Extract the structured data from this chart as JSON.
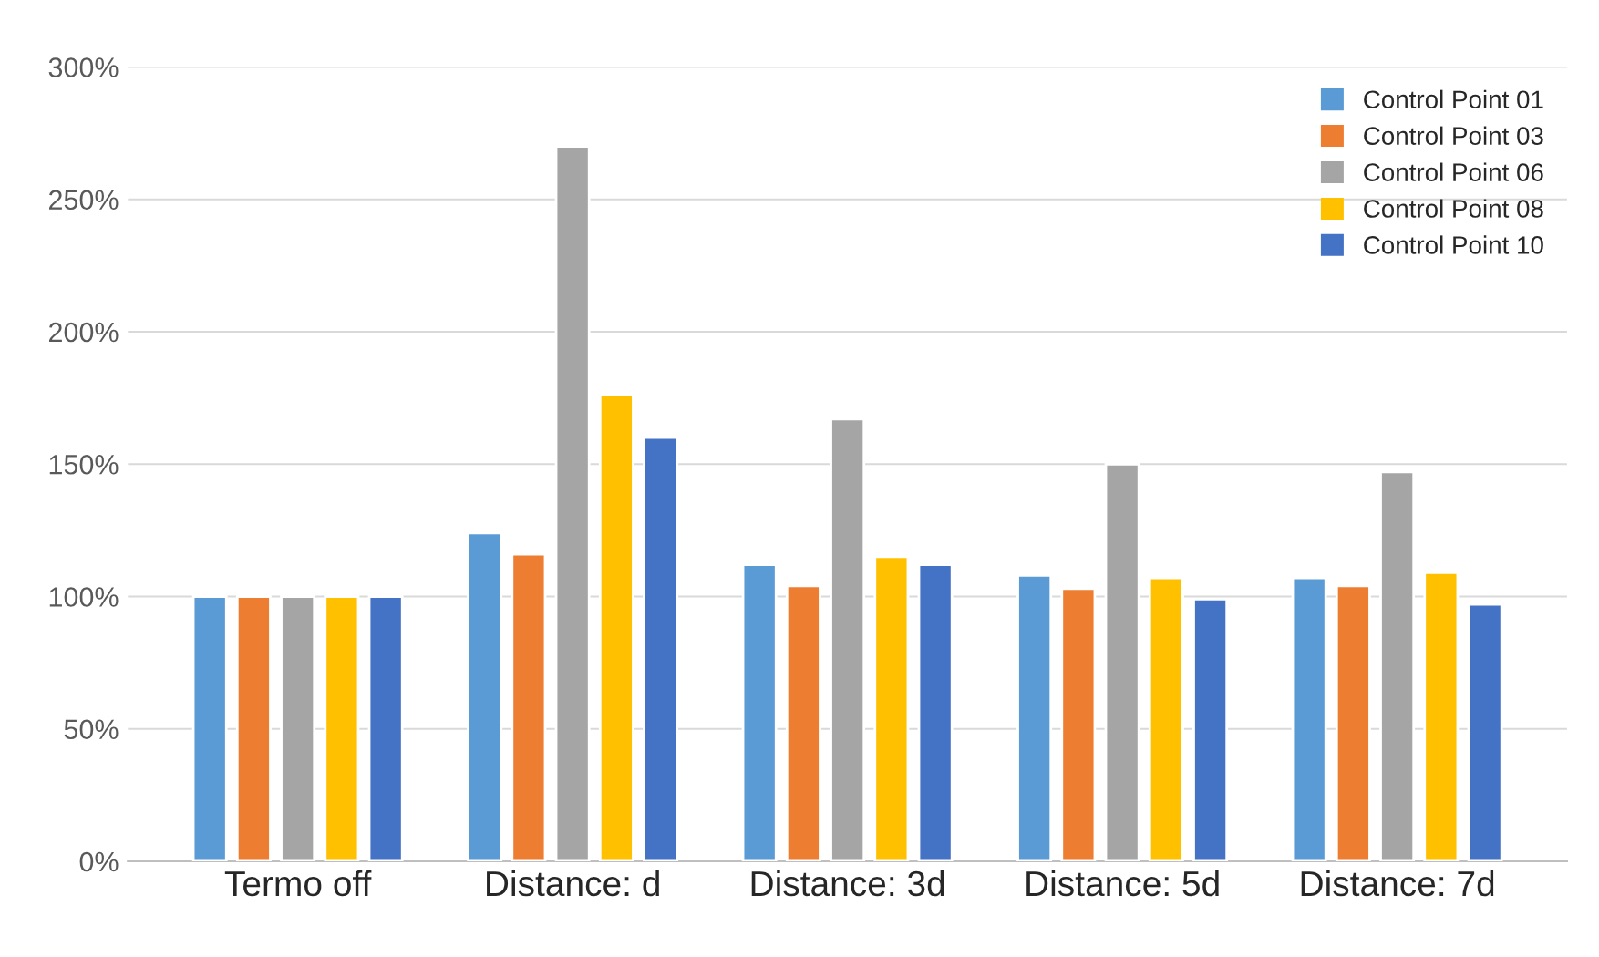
{
  "chart_data": {
    "type": "bar",
    "categories": [
      "Termo off",
      "Distance: d",
      "Distance: 3d",
      "Distance: 5d",
      "Distance: 7d"
    ],
    "series": [
      {
        "name": "Control Point 01",
        "color": "#5b9bd5",
        "values": [
          100,
          124,
          112,
          108,
          107
        ]
      },
      {
        "name": "Control Point 03",
        "color": "#ed7d31",
        "values": [
          100,
          116,
          104,
          103,
          104
        ]
      },
      {
        "name": "Control Point 06",
        "color": "#a5a5a5",
        "values": [
          100,
          270,
          167,
          150,
          147
        ]
      },
      {
        "name": "Control Point 08",
        "color": "#ffc000",
        "values": [
          100,
          176,
          115,
          107,
          109
        ]
      },
      {
        "name": "Control Point 10",
        "color": "#4472c4",
        "values": [
          100,
          160,
          112,
          99,
          97
        ]
      }
    ],
    "ylim": [
      0,
      300
    ],
    "yticks": [
      {
        "value": 0,
        "label": "0%"
      },
      {
        "value": 50,
        "label": "50%"
      },
      {
        "value": 100,
        "label": "100%"
      },
      {
        "value": 150,
        "label": "150%"
      },
      {
        "value": 200,
        "label": "200%"
      },
      {
        "value": 250,
        "label": "250%"
      },
      {
        "value": 300,
        "label": "300%"
      }
    ],
    "grid": "y",
    "legend": "top right"
  }
}
